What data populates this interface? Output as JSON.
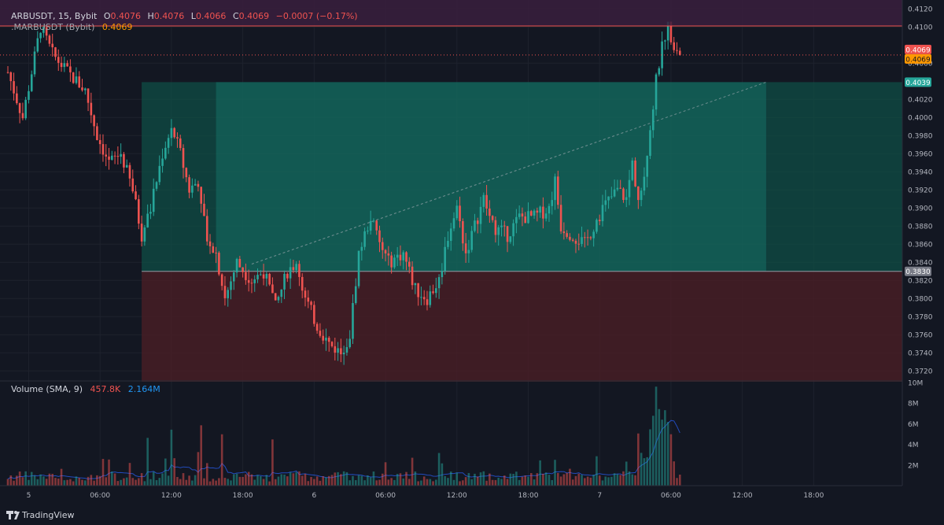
{
  "header": {
    "symbol": "ARBUSDT, 15, Bybit",
    "o_label": "O",
    "o_value": "0.4076",
    "h_label": "H",
    "h_value": "0.4076",
    "l_label": "L",
    "l_value": "0.4066",
    "c_label": "C",
    "c_value": "0.4069",
    "change": "−0.0007 (−0.17%)",
    "mark_symbol": ".MARBUSDT (Bybit)",
    "mark_value": "0.4069"
  },
  "volume_legend": {
    "title": "Volume (SMA, 9)",
    "value": "457.8K",
    "sma": "2.164M"
  },
  "footer": {
    "brand": "TradingView"
  },
  "colors": {
    "background": "#131722",
    "up": "#26a69a",
    "down": "#ef5350",
    "profit_zone": "#0f4d45",
    "loss_zone": "#4a1e26",
    "sma_line": "#2962ff",
    "top_band": "#3d1f3e"
  },
  "chart_data": {
    "type": "candlestick",
    "price_ticks": [
      "0.4120",
      "0.4100",
      "0.4060",
      "0.4020",
      "0.4000",
      "0.3980",
      "0.3960",
      "0.3940",
      "0.3920",
      "0.3900",
      "0.3880",
      "0.3860",
      "0.3840",
      "0.3820",
      "0.3800",
      "0.3780",
      "0.3760",
      "0.3740",
      "0.3720"
    ],
    "price_range": [
      0.3708,
      0.4128
    ],
    "price_labels": {
      "last": "0.4069",
      "mark": "0.4069",
      "target": "0.4039",
      "entry": "0.3830",
      "stop": "0.3708"
    },
    "volume_ticks": [
      "10M",
      "8M",
      "6M",
      "4M",
      "2M"
    ],
    "volume_range": [
      0,
      10000000
    ],
    "time_ticks": [
      "5",
      "06:00",
      "12:00",
      "18:00",
      "6",
      "06:00",
      "12:00",
      "18:00",
      "7",
      "06:00",
      "12:00",
      "18:00"
    ],
    "time_tick_bars": [
      7,
      31,
      55,
      79,
      103,
      127,
      151,
      175,
      199,
      223,
      247,
      271
    ],
    "bar_count": 260,
    "position": {
      "type": "long",
      "entry": 0.383,
      "target": 0.4039,
      "stop": 0.3708,
      "start_bar": 45,
      "end_bar": 300,
      "label": ""
    },
    "price_path": [
      [
        0,
        0.405
      ],
      [
        5,
        0.4
      ],
      [
        8,
        0.405
      ],
      [
        11,
        0.41
      ],
      [
        15,
        0.407
      ],
      [
        20,
        0.405
      ],
      [
        26,
        0.403
      ],
      [
        30,
        0.398
      ],
      [
        34,
        0.395
      ],
      [
        38,
        0.396
      ],
      [
        42,
        0.392
      ],
      [
        45,
        0.387
      ],
      [
        48,
        0.39
      ],
      [
        52,
        0.396
      ],
      [
        55,
        0.399
      ],
      [
        58,
        0.396
      ],
      [
        61,
        0.392
      ],
      [
        64,
        0.393
      ],
      [
        67,
        0.387
      ],
      [
        70,
        0.385
      ],
      [
        73,
        0.38
      ],
      [
        77,
        0.384
      ],
      [
        82,
        0.382
      ],
      [
        86,
        0.383
      ],
      [
        90,
        0.379
      ],
      [
        94,
        0.383
      ],
      [
        97,
        0.384
      ],
      [
        100,
        0.38
      ],
      [
        104,
        0.377
      ],
      [
        108,
        0.375
      ],
      [
        112,
        0.374
      ],
      [
        115,
        0.376
      ],
      [
        118,
        0.385
      ],
      [
        122,
        0.389
      ],
      [
        125,
        0.386
      ],
      [
        128,
        0.384
      ],
      [
        133,
        0.385
      ],
      [
        137,
        0.381
      ],
      [
        141,
        0.38
      ],
      [
        145,
        0.382
      ],
      [
        148,
        0.387
      ],
      [
        151,
        0.39
      ],
      [
        154,
        0.385
      ],
      [
        157,
        0.388
      ],
      [
        160,
        0.391
      ],
      [
        163,
        0.388
      ],
      [
        168,
        0.387
      ],
      [
        172,
        0.389
      ],
      [
        177,
        0.389
      ],
      [
        182,
        0.39
      ],
      [
        184,
        0.393
      ],
      [
        186,
        0.388
      ],
      [
        190,
        0.387
      ],
      [
        194,
        0.386
      ],
      [
        197,
        0.388
      ],
      [
        200,
        0.39
      ],
      [
        205,
        0.392
      ],
      [
        208,
        0.391
      ],
      [
        210,
        0.395
      ],
      [
        212,
        0.391
      ],
      [
        214,
        0.394
      ],
      [
        216,
        0.399
      ],
      [
        218,
        0.404
      ],
      [
        220,
        0.408
      ],
      [
        222,
        0.41
      ],
      [
        224,
        0.408
      ],
      [
        226,
        0.4069
      ]
    ]
  }
}
